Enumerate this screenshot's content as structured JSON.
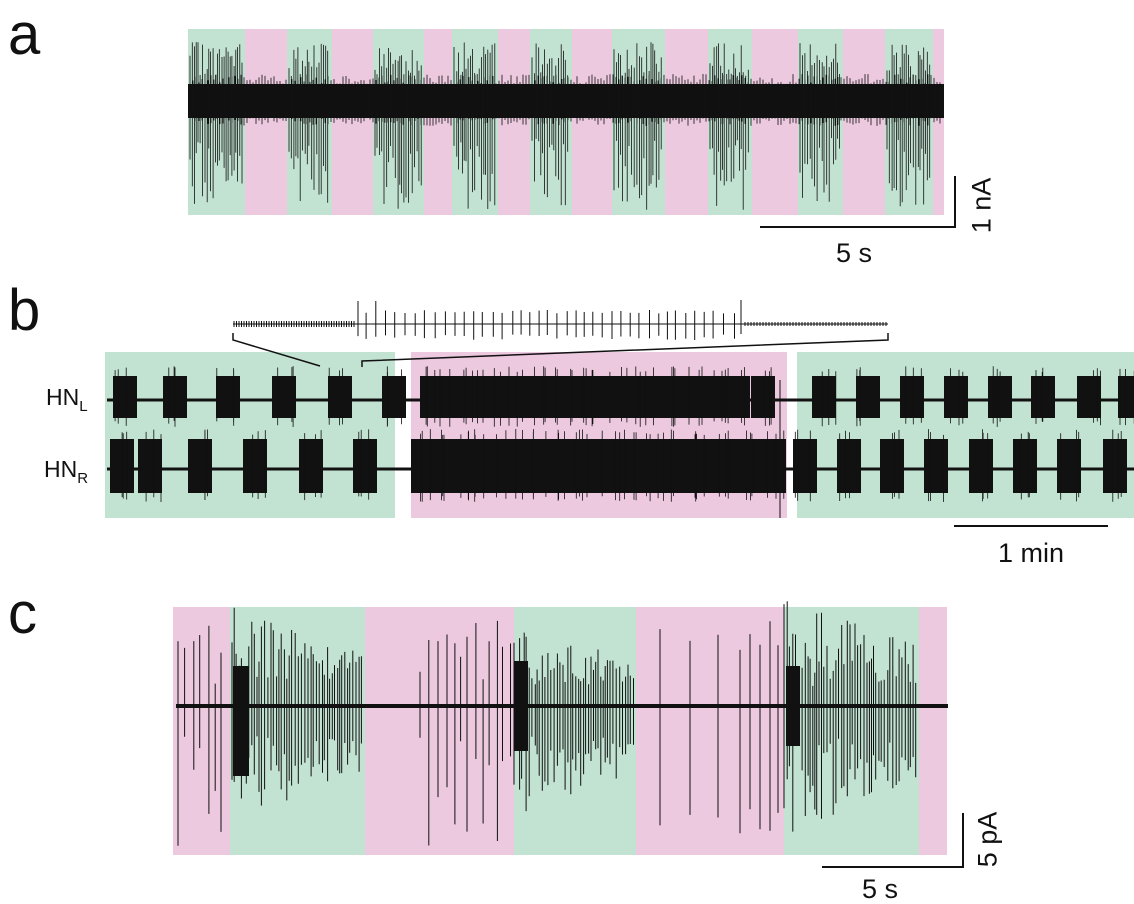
{
  "panels": [
    {
      "letter": "a",
      "time_scale": "5 s",
      "amp_scale": "1 nA"
    },
    {
      "letter": "b",
      "time_scale": "1 min",
      "trace_labels": [
        {
          "base": "HN",
          "sub": "L"
        },
        {
          "base": "HN",
          "sub": "R"
        }
      ]
    },
    {
      "letter": "c",
      "time_scale": "5 s",
      "amp_scale": "5 pA"
    }
  ],
  "colors": {
    "green": "#c2e2d2",
    "pink": "#ecc9df",
    "trace": "#111111"
  }
}
